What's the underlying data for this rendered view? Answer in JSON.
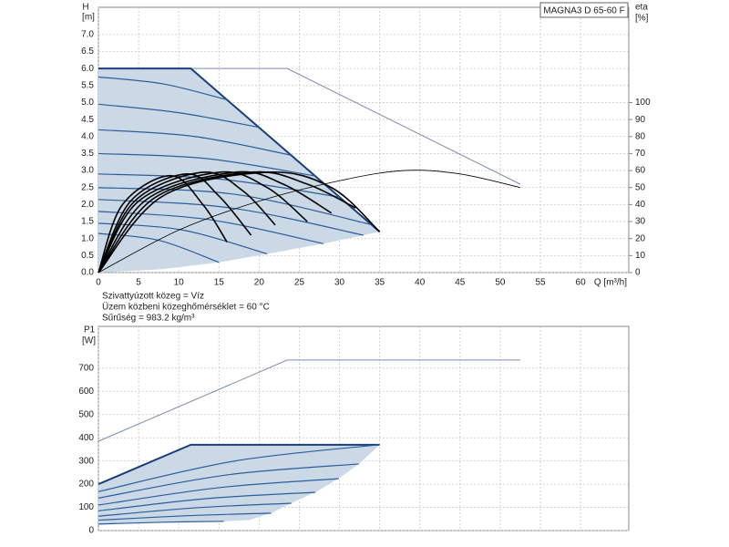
{
  "chart_data": [
    {
      "type": "line",
      "title": "MAGNA3 D 65-60 F",
      "y_label": "H",
      "y_unit": "[m]",
      "y2_label": "eta",
      "y2_unit": "[%]",
      "x_label": "Q [m³/h]",
      "annotations": [
        "Szivattyúzott közeg = Víz",
        "Üzem közbeni közeghőmérséklet = 60 °C",
        "Sűrűség = 983.2 kg/m³"
      ],
      "xlim": [
        0,
        66
      ],
      "xticks": [
        0,
        5,
        10,
        15,
        20,
        25,
        30,
        35,
        40,
        45,
        50,
        55,
        60
      ],
      "ylim": [
        0,
        7.8
      ],
      "yticks": [
        {
          "value": 0,
          "label": "0.0"
        },
        0.5,
        {
          "value": 1,
          "label": "1.0"
        },
        1.5,
        {
          "value": 2,
          "label": "2.0"
        },
        2.5,
        {
          "value": 3,
          "label": "3.0"
        },
        3.5,
        {
          "value": 4,
          "label": "4.0"
        },
        4.5,
        {
          "value": 5,
          "label": "5.0"
        },
        5.5,
        {
          "value": 6,
          "label": "6.0"
        },
        6.5,
        {
          "value": 7,
          "label": "7.0"
        }
      ],
      "y2lim": [
        0,
        156
      ],
      "y2ticks": [
        0,
        10,
        20,
        30,
        40,
        50,
        60,
        70,
        80,
        90,
        100
      ],
      "grid": true,
      "series": [
        {
          "color": "#cbd9e6",
          "fill": true,
          "x": [
            0,
            11.5,
            35,
            33,
            28,
            21,
            15,
            8,
            0
          ],
          "values": [
            6.0,
            6.0,
            1.2,
            1.1,
            0.85,
            0.55,
            0.3,
            0.1,
            0
          ]
        },
        {
          "color": "#7c8fae",
          "width": 1,
          "smooth": false,
          "x": [
            0,
            23.5,
            52.5
          ],
          "values": [
            6.0,
            6.0,
            2.6
          ]
        },
        {
          "color": "#1b3f7a",
          "width": 2,
          "smooth": false,
          "x": [
            0,
            11.5,
            35
          ],
          "values": [
            6.0,
            6.0,
            1.2
          ]
        },
        {
          "color": "#2b5d9b",
          "width": 1.2,
          "x": [
            0,
            8,
            16
          ],
          "values": [
            5.75,
            5.55,
            5.08
          ]
        },
        {
          "color": "#2b5d9b",
          "width": 1.2,
          "x": [
            0,
            10,
            20
          ],
          "values": [
            4.95,
            4.7,
            4.27
          ]
        },
        {
          "color": "#2b5d9b",
          "width": 1.2,
          "x": [
            0,
            12,
            24
          ],
          "values": [
            4.2,
            4.0,
            3.45
          ]
        },
        {
          "color": "#2b5d9b",
          "width": 1.2,
          "x": [
            0,
            13.5,
            27
          ],
          "values": [
            3.5,
            3.35,
            2.84
          ]
        },
        {
          "color": "#2b5d9b",
          "width": 1.2,
          "x": [
            0,
            15,
            30
          ],
          "values": [
            2.9,
            2.75,
            2.22
          ]
        },
        {
          "color": "#2b5d9b",
          "width": 1.2,
          "x": [
            0,
            17,
            34
          ],
          "values": [
            2.5,
            2.3,
            1.41
          ]
        },
        {
          "color": "#2b5d9b",
          "width": 1.2,
          "x": [
            0,
            16.5,
            33
          ],
          "values": [
            2.15,
            1.9,
            1.1
          ]
        },
        {
          "color": "#2b5d9b",
          "width": 1.2,
          "x": [
            0,
            14,
            28
          ],
          "values": [
            1.8,
            1.55,
            0.85
          ]
        },
        {
          "color": "#2b5d9b",
          "width": 1.2,
          "x": [
            0,
            10.5,
            21
          ],
          "values": [
            1.45,
            1.25,
            0.55
          ]
        },
        {
          "color": "#2b5d9b",
          "width": 1.2,
          "x": [
            0,
            7.5,
            15
          ],
          "values": [
            1.15,
            0.95,
            0.3
          ]
        },
        {
          "color": "#000000",
          "width": 1.6,
          "axis": "y2",
          "x": [
            0,
            3,
            9,
            13,
            16
          ],
          "values": [
            0,
            40,
            57,
            40,
            18
          ]
        },
        {
          "color": "#000000",
          "width": 1.6,
          "axis": "y2",
          "x": [
            0,
            4,
            11,
            15,
            19
          ],
          "values": [
            0,
            42,
            58,
            45,
            22
          ]
        },
        {
          "color": "#000000",
          "width": 1.6,
          "axis": "y2",
          "x": [
            0,
            4.5,
            13,
            18,
            22
          ],
          "values": [
            0,
            42,
            59,
            48,
            28
          ]
        },
        {
          "color": "#000000",
          "width": 1.6,
          "axis": "y2",
          "x": [
            0,
            5,
            15,
            21,
            26
          ],
          "values": [
            0,
            42,
            59,
            50,
            30
          ]
        },
        {
          "color": "#000000",
          "width": 1.6,
          "axis": "y2",
          "x": [
            0,
            6,
            17,
            23,
            29
          ],
          "values": [
            0,
            43,
            59,
            52,
            35
          ]
        },
        {
          "color": "#000000",
          "width": 1.6,
          "axis": "y2",
          "x": [
            0,
            7,
            19,
            26,
            32
          ],
          "values": [
            0,
            44,
            59,
            52,
            38
          ]
        },
        {
          "color": "#000000",
          "width": 1.6,
          "axis": "y2",
          "x": [
            0,
            8,
            21,
            29,
            35
          ],
          "values": [
            0,
            45,
            59,
            50,
            24
          ]
        },
        {
          "color": "#000000",
          "width": 0.8,
          "axis": "y2",
          "x": [
            0,
            10,
            20,
            30,
            38,
            45,
            52.5
          ],
          "values": [
            0,
            25,
            42,
            54,
            60,
            58,
            50
          ]
        }
      ]
    },
    {
      "type": "line",
      "y_label": "P1",
      "y_unit": "[W]",
      "xlim": [
        0,
        66
      ],
      "ylim": [
        0,
        880
      ],
      "yticks": [
        0,
        100,
        200,
        300,
        400,
        500,
        600,
        700
      ],
      "grid": true,
      "series": [
        {
          "color": "#cbd9e6",
          "fill": true,
          "x": [
            0,
            11.5,
            35,
            32.4,
            29.9,
            27,
            24,
            21.5,
            18.7,
            15.6,
            0
          ],
          "values": [
            200,
            370,
            370,
            287,
            224,
            165,
            118,
            75,
            45,
            40,
            28
          ]
        },
        {
          "color": "#7c8fae",
          "width": 1,
          "smooth": false,
          "x": [
            0,
            23.5,
            52.5
          ],
          "values": [
            385,
            735,
            735
          ]
        },
        {
          "color": "#1b3f7a",
          "width": 2,
          "smooth": false,
          "x": [
            0,
            11.5,
            35
          ],
          "values": [
            200,
            370,
            370
          ]
        },
        {
          "color": "#2b5d9b",
          "width": 1.2,
          "x": [
            0,
            17,
            35
          ],
          "values": [
            168,
            300,
            370
          ]
        },
        {
          "color": "#2b5d9b",
          "width": 1.2,
          "x": [
            0,
            16,
            32.4
          ],
          "values": [
            140,
            240,
            287
          ]
        },
        {
          "color": "#2b5d9b",
          "width": 1.2,
          "x": [
            0,
            15,
            29.9
          ],
          "values": [
            110,
            185,
            224
          ]
        },
        {
          "color": "#2b5d9b",
          "width": 1.2,
          "x": [
            0,
            13.5,
            27
          ],
          "values": [
            85,
            138,
            165
          ]
        },
        {
          "color": "#2b5d9b",
          "width": 1.2,
          "x": [
            0,
            12,
            24
          ],
          "values": [
            62,
            98,
            118
          ]
        },
        {
          "color": "#2b5d9b",
          "width": 1.2,
          "x": [
            0,
            11,
            21.5
          ],
          "values": [
            45,
            64,
            75
          ]
        },
        {
          "color": "#2b5d9b",
          "width": 1.2,
          "x": [
            0,
            8,
            15.6
          ],
          "values": [
            28,
            36,
            40
          ]
        }
      ]
    }
  ]
}
